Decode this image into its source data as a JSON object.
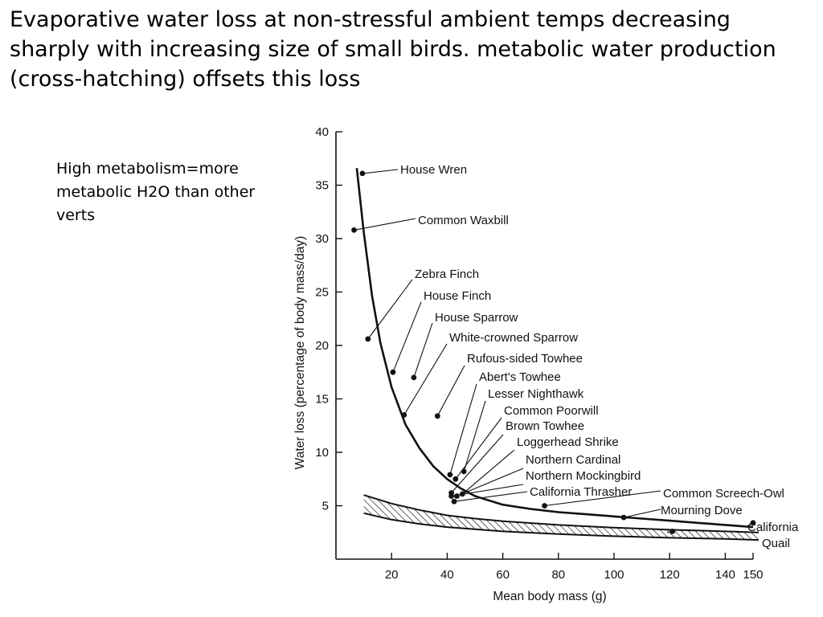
{
  "slide": {
    "title": "Evaporative water loss at non-stressful ambient temps decreasing sharply with increasing size of small birds. metabolic water production (cross-hatching) offsets this loss",
    "note": "High metabolism=more metabolic H2O than other verts"
  },
  "chart_data": {
    "type": "scatter",
    "title": "",
    "xlabel": "Mean body mass (g)",
    "ylabel": "Water loss (percentage of body mass/day)",
    "xlim": [
      0,
      150
    ],
    "ylim": [
      0,
      40
    ],
    "xticks": [
      20,
      40,
      60,
      80,
      100,
      120,
      140,
      150
    ],
    "xtick_labels": [
      "20",
      "40",
      "60",
      "80",
      "100",
      "120",
      "140",
      "150"
    ],
    "yticks": [
      5,
      10,
      15,
      20,
      25,
      30,
      35,
      40
    ],
    "ytick_labels": [
      "5",
      "10",
      "15",
      "20",
      "25",
      "30",
      "35",
      "40"
    ],
    "grid": false,
    "legend": "none",
    "points": [
      {
        "name": "House Wren",
        "x": 9.5,
        "y": 36.1
      },
      {
        "name": "Common Waxbill",
        "x": 6.5,
        "y": 30.8
      },
      {
        "name": "Zebra Finch",
        "x": 11.5,
        "y": 20.6
      },
      {
        "name": "House Finch",
        "x": 20.5,
        "y": 17.5
      },
      {
        "name": "House Sparrow",
        "x": 28.0,
        "y": 17.0
      },
      {
        "name": "White-crowned Sparrow",
        "x": 24.5,
        "y": 13.5
      },
      {
        "name": "Rufous-sided Towhee",
        "x": 36.5,
        "y": 13.4
      },
      {
        "name": "Abert's Towhee",
        "x": 41.0,
        "y": 7.9
      },
      {
        "name": "Lesser Nighthawk",
        "x": 46.0,
        "y": 8.2
      },
      {
        "name": "Common Poorwill",
        "x": 43.0,
        "y": 7.5
      },
      {
        "name": "Brown Towhee",
        "x": 41.5,
        "y": 6.2
      },
      {
        "name": "Loggerhead Shrike",
        "x": 45.5,
        "y": 6.1
      },
      {
        "name": "Northern Cardinal",
        "x": 43.5,
        "y": 5.9
      },
      {
        "name": "Northern Mockingbird",
        "x": 41.5,
        "y": 5.9
      },
      {
        "name": "California Thrasher",
        "x": 42.5,
        "y": 5.4
      },
      {
        "name": "Common Screech-Owl",
        "x": 75.0,
        "y": 5.0
      },
      {
        "name": "Mourning Dove",
        "x": 103.5,
        "y": 3.9
      },
      {
        "name": "California Quail",
        "x": 121.0,
        "y": 2.6
      },
      {
        "name": "",
        "x": 150.0,
        "y": 3.4
      }
    ],
    "labels": [
      "House Wren",
      "Common Waxbill",
      "Zebra Finch",
      "House Finch",
      "House Sparrow",
      "White-crowned Sparrow",
      "Rufous-sided Towhee",
      "Abert's Towhee",
      "Lesser Nighthawk",
      "Common Poorwill",
      "Brown Towhee",
      "Loggerhead Shrike",
      "Northern Cardinal",
      "Northern Mockingbird",
      "California Thrasher",
      "Common Screech-Owl",
      "Mourning Dove",
      "California",
      "Quail"
    ],
    "loss_curve": {
      "x": [
        7.5,
        10,
        13,
        16,
        20,
        25,
        30,
        35,
        40,
        45,
        50,
        60,
        70,
        80,
        90,
        100,
        110,
        120,
        130,
        140,
        150
      ],
      "y": [
        36.6,
        30.6,
        24.6,
        20.2,
        16.1,
        12.6,
        10.4,
        8.7,
        7.5,
        6.6,
        5.9,
        5.1,
        4.7,
        4.4,
        4.2,
        4.0,
        3.8,
        3.6,
        3.4,
        3.2,
        3.0
      ]
    },
    "metabolic_band": {
      "style": "cross-hatching",
      "x": [
        10,
        20,
        30,
        40,
        50,
        60,
        80,
        100,
        120,
        140,
        152
      ],
      "upper": [
        6.0,
        5.2,
        4.6,
        4.1,
        3.8,
        3.55,
        3.2,
        2.95,
        2.75,
        2.6,
        2.5
      ],
      "lower": [
        4.3,
        3.7,
        3.3,
        3.0,
        2.8,
        2.6,
        2.35,
        2.15,
        2.0,
        1.9,
        1.8
      ]
    }
  }
}
